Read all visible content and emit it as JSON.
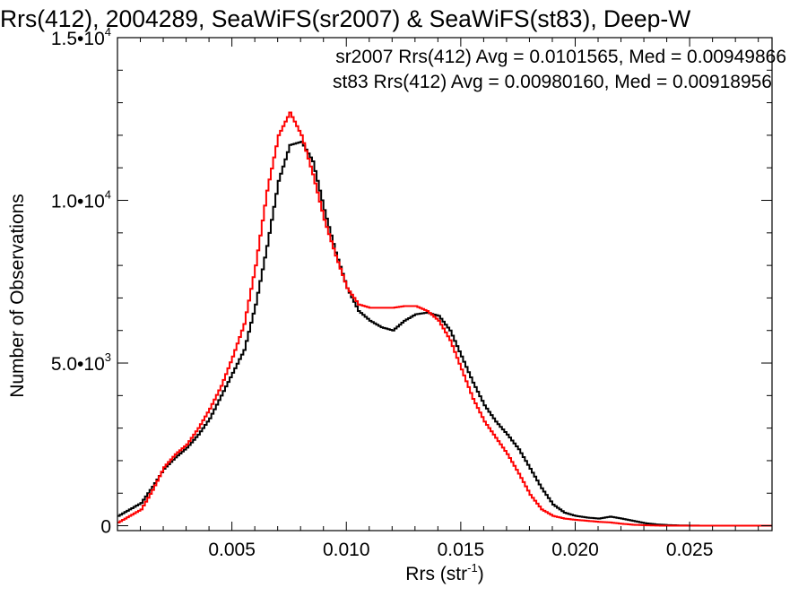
{
  "chart_data": {
    "type": "line",
    "title": "Rrs(412), 2004289, SeaWiFS(sr2007) & SeaWiFS(st83), Deep-W",
    "xlabel": "Rrs (str",
    "xlabel_sup": "-1",
    "xlabel_suffix": ")",
    "ylabel": "Number of Observations",
    "xlim": [
      0.0,
      0.0286
    ],
    "ylim": [
      -150,
      15000
    ],
    "grid": false,
    "legend_position": "top-right",
    "x_ticks": [
      {
        "value": 0.005,
        "label": "0.005"
      },
      {
        "value": 0.01,
        "label": "0.010"
      },
      {
        "value": 0.015,
        "label": "0.015"
      },
      {
        "value": 0.02,
        "label": "0.020"
      },
      {
        "value": 0.025,
        "label": "0.025"
      }
    ],
    "y_ticks": [
      {
        "value": 0,
        "base": "0",
        "exp": ""
      },
      {
        "value": 5000,
        "base": "5.0•10",
        "exp": "3"
      },
      {
        "value": 10000,
        "base": "1.0•10",
        "exp": "4"
      },
      {
        "value": 15000,
        "base": "1.5•10",
        "exp": "4"
      }
    ],
    "series": [
      {
        "name": "sr2007",
        "legend": "sr2007 Rrs(412) Avg = 0.0101565, Med = 0.00949866",
        "color": "#000000",
        "x": [
          0.0,
          0.001,
          0.0015,
          0.002,
          0.0025,
          0.003,
          0.0035,
          0.004,
          0.0045,
          0.005,
          0.0055,
          0.006,
          0.0065,
          0.007,
          0.0075,
          0.008,
          0.0085,
          0.009,
          0.0095,
          0.01,
          0.0105,
          0.011,
          0.0115,
          0.012,
          0.0125,
          0.013,
          0.0135,
          0.014,
          0.0145,
          0.015,
          0.0155,
          0.016,
          0.0165,
          0.017,
          0.0175,
          0.018,
          0.0185,
          0.019,
          0.0195,
          0.02,
          0.0205,
          0.021,
          0.0215,
          0.022,
          0.0225,
          0.023,
          0.0235,
          0.024,
          0.0245,
          0.025,
          0.026,
          0.027,
          0.0286
        ],
        "y": [
          300,
          700,
          1200,
          1750,
          2100,
          2400,
          2800,
          3300,
          4000,
          4700,
          5400,
          6800,
          8600,
          10600,
          11700,
          11800,
          11200,
          9700,
          8400,
          7300,
          6600,
          6300,
          6100,
          6000,
          6300,
          6500,
          6550,
          6450,
          6000,
          5200,
          4400,
          3700,
          3200,
          2800,
          2350,
          1750,
          1150,
          650,
          400,
          300,
          250,
          220,
          280,
          220,
          150,
          80,
          40,
          20,
          10,
          5,
          0,
          0,
          0
        ]
      },
      {
        "name": "st83",
        "legend": "st83 Rrs(412) Avg = 0.00980160, Med = 0.00918956",
        "color": "#ff0000",
        "x": [
          0.0,
          0.001,
          0.0015,
          0.002,
          0.0025,
          0.003,
          0.0035,
          0.004,
          0.0045,
          0.005,
          0.0055,
          0.006,
          0.0065,
          0.007,
          0.0075,
          0.008,
          0.0085,
          0.009,
          0.0095,
          0.01,
          0.0105,
          0.011,
          0.0115,
          0.012,
          0.0125,
          0.013,
          0.0135,
          0.014,
          0.0145,
          0.015,
          0.0155,
          0.016,
          0.0165,
          0.017,
          0.0175,
          0.018,
          0.0185,
          0.019,
          0.0195,
          0.02,
          0.0205,
          0.021,
          0.0215,
          0.022,
          0.0225,
          0.023,
          0.0235,
          0.024,
          0.0245,
          0.025,
          0.026,
          0.027,
          0.0286
        ],
        "y": [
          100,
          500,
          1100,
          1800,
          2200,
          2500,
          3000,
          3600,
          4300,
          5200,
          6200,
          8000,
          10300,
          12000,
          12700,
          12000,
          10800,
          9400,
          8300,
          7300,
          6800,
          6700,
          6700,
          6700,
          6750,
          6750,
          6600,
          6300,
          5700,
          4800,
          3900,
          3200,
          2700,
          2200,
          1600,
          950,
          500,
          300,
          220,
          180,
          150,
          120,
          100,
          60,
          30,
          15,
          5,
          0,
          0,
          0,
          0,
          0,
          0
        ]
      }
    ]
  }
}
